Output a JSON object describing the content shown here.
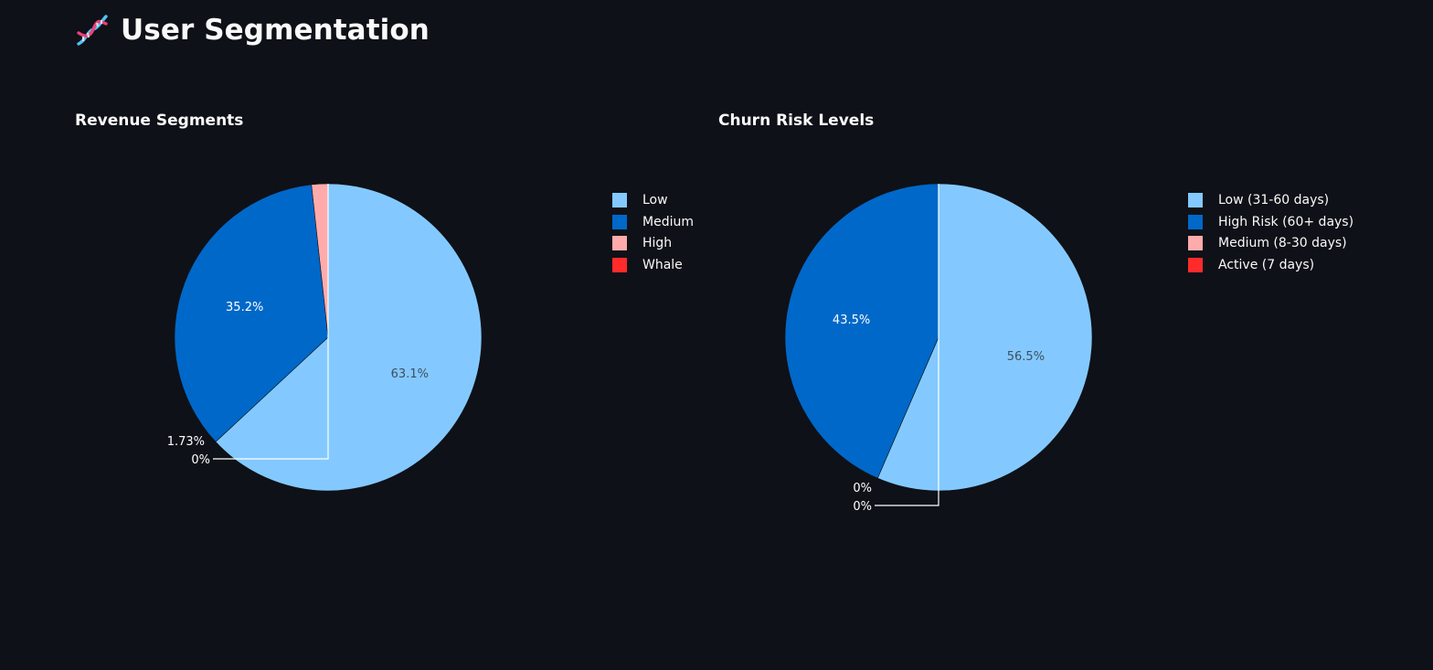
{
  "page": {
    "title": "User Segmentation",
    "icon": "dna-icon"
  },
  "chart_data": [
    {
      "type": "pie",
      "title": "Revenue Segments",
      "labels": [
        "Low",
        "Medium",
        "High",
        "Whale"
      ],
      "values": [
        63.1,
        35.2,
        1.73,
        0
      ],
      "percent_labels": [
        "63.1%",
        "35.2%",
        "1.73%",
        "0%"
      ],
      "colors": [
        "#83c9ff",
        "#0068c9",
        "#ffabab",
        "#ff2b2b"
      ],
      "legend_position": "right"
    },
    {
      "type": "pie",
      "title": "Churn Risk Levels",
      "labels": [
        "Low (31-60 days)",
        "High Risk (60+ days)",
        "Medium (8-30 days)",
        "Active (7 days)"
      ],
      "values": [
        56.5,
        43.5,
        0,
        0
      ],
      "percent_labels": [
        "56.5%",
        "43.5%",
        "0%",
        "0%"
      ],
      "colors": [
        "#83c9ff",
        "#0068c9",
        "#ffabab",
        "#ff2b2b"
      ],
      "legend_position": "right"
    }
  ]
}
